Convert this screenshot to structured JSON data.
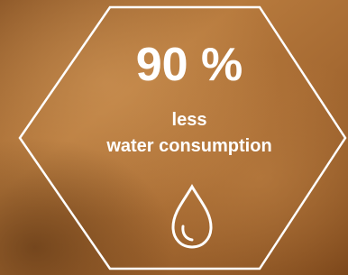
{
  "headline": "90 %",
  "caption": [
    "less",
    "water consumption"
  ]
}
